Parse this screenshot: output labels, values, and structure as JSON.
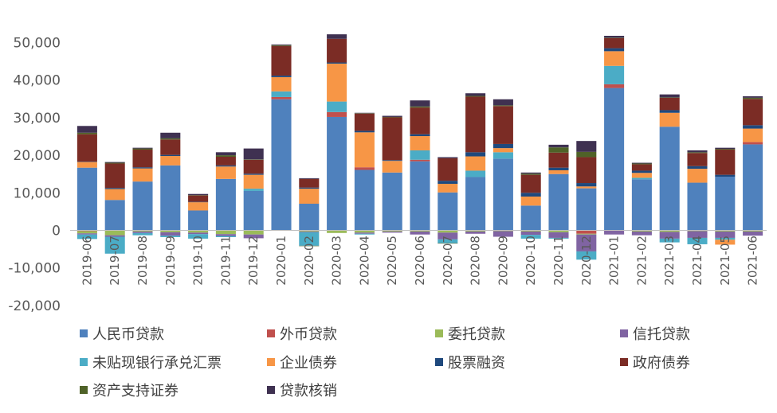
{
  "chart_data": {
    "type": "bar",
    "stacked": true,
    "title": "",
    "xlabel": "",
    "ylabel": "",
    "ylim": [
      -20000,
      52000
    ],
    "yticks": [
      -20000,
      -10000,
      0,
      10000,
      20000,
      30000,
      40000,
      50000
    ],
    "ytick_labels": [
      "-20,000",
      "-10,000",
      "0",
      "10,000",
      "20,000",
      "30,000",
      "40,000",
      "50,000"
    ],
    "grid": false,
    "legend_position": "bottom",
    "categories": [
      "2019-06",
      "2019-07",
      "2019-08",
      "2019-09",
      "2019-10",
      "2019-11",
      "2019-12",
      "2020-01",
      "2020-02",
      "2020-03",
      "2020-04",
      "2020-05",
      "2020-06",
      "2020-07",
      "2020-08",
      "2020-09",
      "2020-10",
      "2020-11",
      "2020-12",
      "2021-01",
      "2021-02",
      "2021-03",
      "2021-04",
      "2021-05",
      "2021-06"
    ],
    "series": [
      {
        "name": "人民币贷款",
        "color": "#4F81BD",
        "values": [
          16700,
          8100,
          13000,
          17300,
          5300,
          13700,
          10500,
          34900,
          7100,
          30200,
          16100,
          15400,
          18400,
          10100,
          14200,
          19100,
          6600,
          15000,
          11200,
          37900,
          13600,
          27600,
          12700,
          14300,
          22900
        ]
      },
      {
        "name": "外币贷款",
        "color": "#C0504D",
        "values": [
          -200,
          0,
          0,
          0,
          0,
          0,
          0,
          600,
          0,
          1300,
          700,
          0,
          400,
          0,
          0,
          0,
          0,
          0,
          -900,
          1000,
          0,
          0,
          0,
          0,
          600
        ]
      },
      {
        "name": "委托贷款",
        "color": "#9BBB59",
        "values": [
          -600,
          -1300,
          -300,
          -500,
          -600,
          -1000,
          -1100,
          -100,
          -300,
          -700,
          -600,
          -300,
          -300,
          -600,
          -300,
          -200,
          -300,
          -500,
          -200,
          -100,
          -300,
          -400,
          -200,
          -300,
          -300
        ]
      },
      {
        "name": "信托贷款",
        "color": "#8064A2",
        "values": [
          -300,
          -400,
          -400,
          -900,
          -400,
          -500,
          -1000,
          0,
          -200,
          0,
          -300,
          -300,
          -800,
          -1800,
          -600,
          -1500,
          -900,
          -1500,
          -4500,
          -1000,
          -1000,
          -1800,
          -1800,
          -1700,
          -1100
        ]
      },
      {
        "name": "未贴现银行承兑汇票",
        "color": "#4BACC6",
        "values": [
          -1200,
          -4500,
          -600,
          -400,
          -1200,
          -300,
          600,
          1500,
          -3600,
          2800,
          -200,
          0,
          2500,
          -1000,
          1700,
          1700,
          -1000,
          -200,
          -2200,
          4900,
          400,
          -1000,
          -1700,
          -500,
          0
        ]
      },
      {
        "name": "企业债券",
        "color": "#F79646",
        "values": [
          1500,
          2900,
          3500,
          2500,
          2200,
          3300,
          3700,
          3800,
          4000,
          10100,
          9300,
          3100,
          3800,
          2300,
          3800,
          1100,
          2400,
          1000,
          500,
          3900,
          1300,
          3700,
          3700,
          -1300,
          3600
        ]
      },
      {
        "name": "股票融资",
        "color": "#1F497D",
        "values": [
          100,
          300,
          300,
          300,
          100,
          300,
          300,
          400,
          300,
          300,
          400,
          200,
          500,
          800,
          1100,
          1100,
          1000,
          700,
          900,
          800,
          600,
          700,
          700,
          500,
          900
        ]
      },
      {
        "name": "政府债券",
        "color": "#7B2C25",
        "values": [
          7300,
          6500,
          4700,
          4100,
          1700,
          2300,
          3700,
          7900,
          2300,
          6300,
          4600,
          11400,
          7100,
          6000,
          14800,
          10100,
          4800,
          4000,
          6900,
          2700,
          1700,
          3300,
          3500,
          6700,
          7000
        ]
      },
      {
        "name": "资产支持证券",
        "color": "#4F6228",
        "values": [
          400,
          200,
          300,
          300,
          100,
          400,
          100,
          200,
          -100,
          0,
          100,
          100,
          300,
          -100,
          200,
          200,
          300,
          1400,
          1400,
          100,
          200,
          100,
          200,
          200,
          300
        ]
      },
      {
        "name": "贷款核销",
        "color": "#3F3151",
        "values": [
          1800,
          200,
          200,
          1500,
          300,
          800,
          2900,
          200,
          200,
          1200,
          100,
          300,
          1600,
          300,
          700,
          1600,
          300,
          700,
          2900,
          500,
          200,
          800,
          500,
          300,
          400
        ]
      }
    ]
  }
}
